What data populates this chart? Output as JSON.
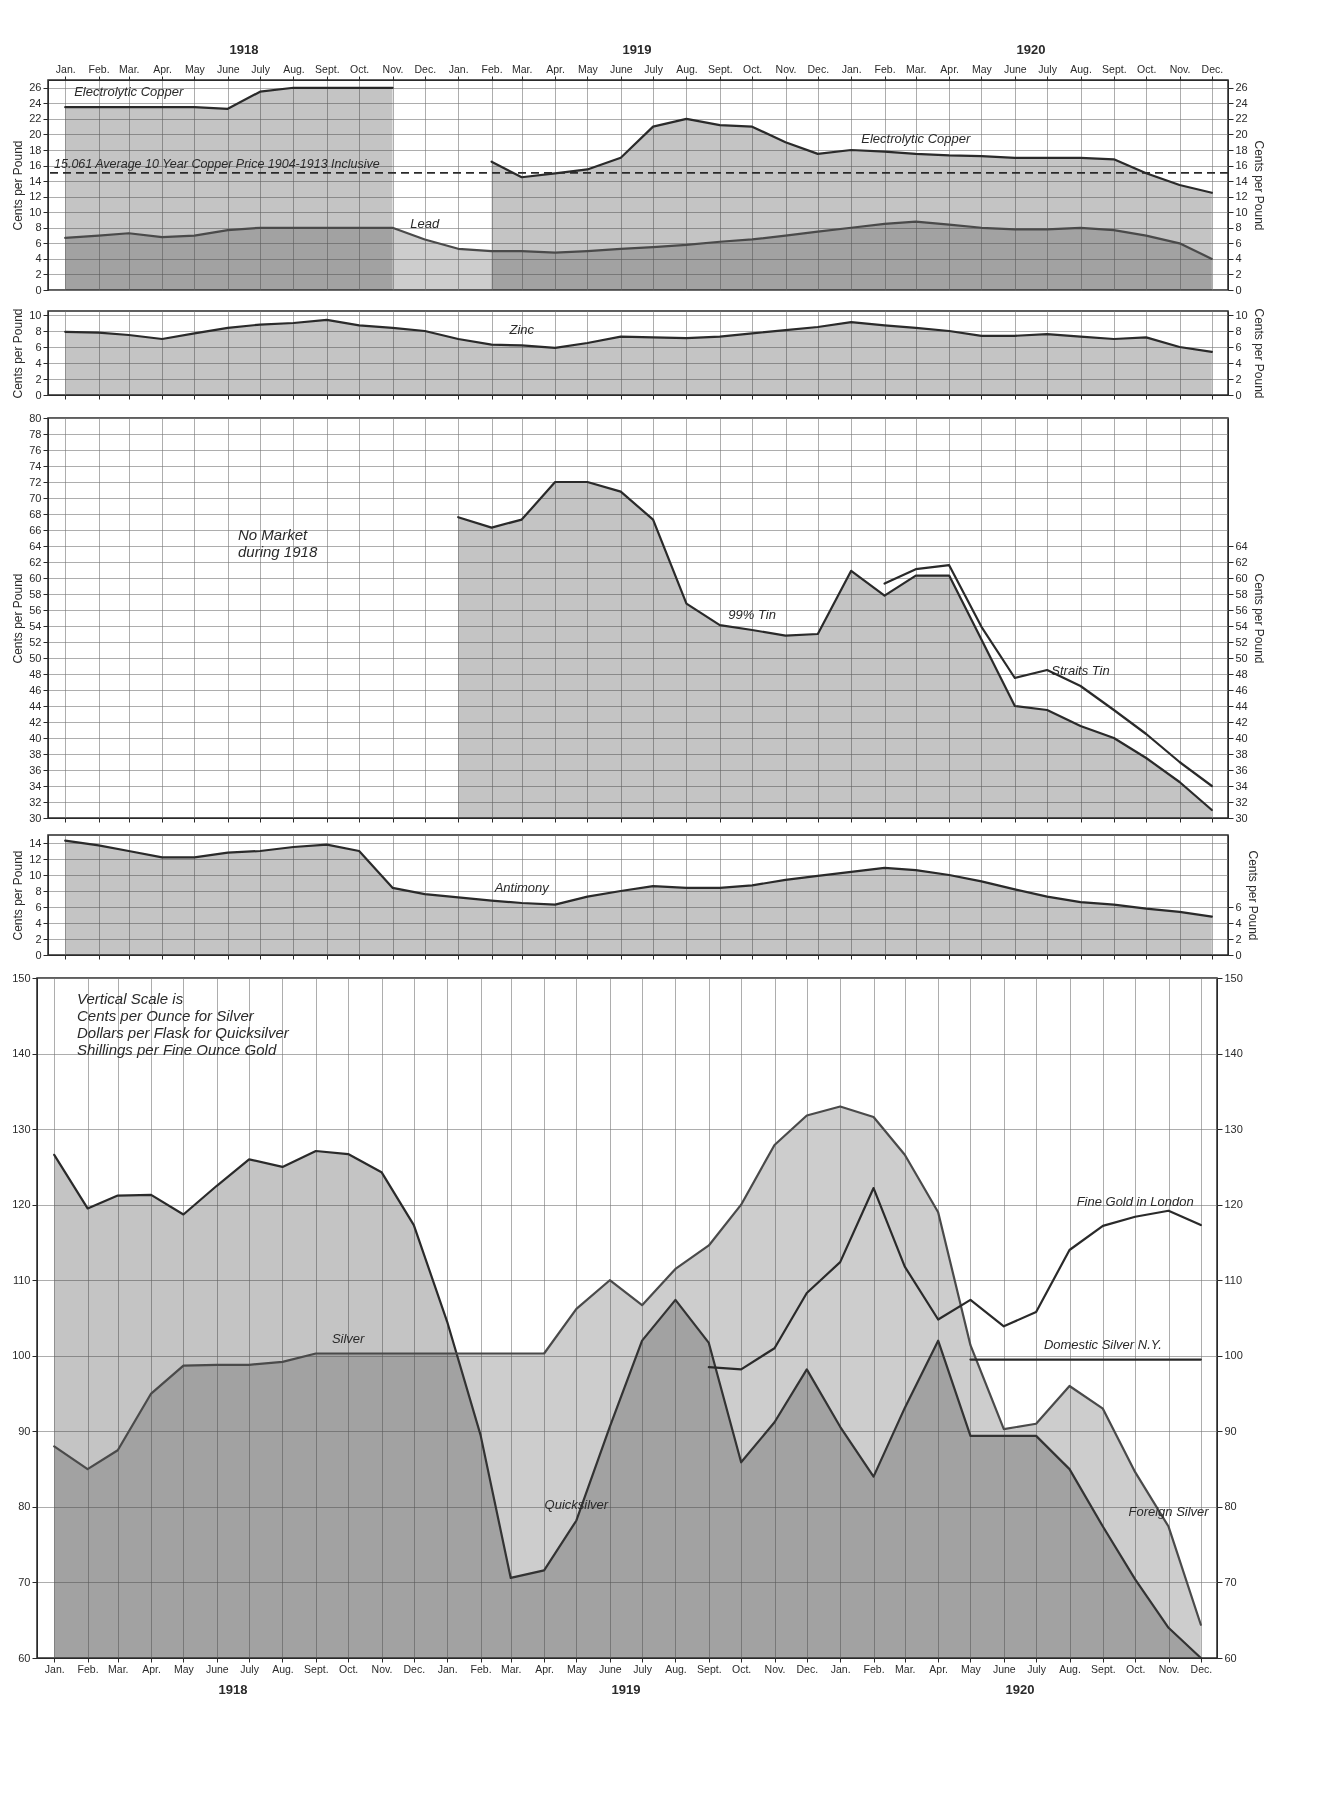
{
  "chart_data": [
    {
      "type": "area",
      "x": [
        "1918-01",
        "1918-02",
        "1918-03",
        "1918-04",
        "1918-05",
        "1918-06",
        "1918-07",
        "1918-08",
        "1918-09",
        "1918-10",
        "1918-11",
        "1918-12",
        "1919-01",
        "1919-02",
        "1919-03",
        "1919-04",
        "1919-05",
        "1919-06",
        "1919-07",
        "1919-08",
        "1919-09",
        "1919-10",
        "1919-11",
        "1919-12",
        "1920-01",
        "1920-02",
        "1920-03",
        "1920-04",
        "1920-05",
        "1920-06",
        "1920-07",
        "1920-08",
        "1920-09",
        "1920-10",
        "1920-11",
        "1920-12"
      ],
      "xlim": [
        "1917-12-16",
        "1920-12-16"
      ],
      "xticks": [
        {
          "value": "1918-01",
          "label": "Jan."
        },
        {
          "value": "1918-02",
          "label": "Feb."
        },
        {
          "value": "1918-03",
          "label": "Mar."
        },
        {
          "value": "1918-04",
          "label": "Apr."
        },
        {
          "value": "1918-05",
          "label": "May"
        },
        {
          "value": "1918-06",
          "label": "June"
        },
        {
          "value": "1918-07",
          "label": "July"
        },
        {
          "value": "1918-08",
          "label": "Aug."
        },
        {
          "value": "1918-09",
          "label": "Sept."
        },
        {
          "value": "1918-10",
          "label": "Oct."
        },
        {
          "value": "1918-11",
          "label": "Nov."
        },
        {
          "value": "1918-12",
          "label": "Dec."
        },
        {
          "value": "1919-01",
          "label": "Jan."
        },
        {
          "value": "1919-02",
          "label": "Feb."
        },
        {
          "value": "1919-03",
          "label": "Mar."
        },
        {
          "value": "1919-04",
          "label": "Apr."
        },
        {
          "value": "1919-05",
          "label": "May"
        },
        {
          "value": "1919-06",
          "label": "June"
        },
        {
          "value": "1919-07",
          "label": "July"
        },
        {
          "value": "1919-08",
          "label": "Aug."
        },
        {
          "value": "1919-09",
          "label": "Sept."
        },
        {
          "value": "1919-10",
          "label": "Oct."
        },
        {
          "value": "1919-11",
          "label": "Nov."
        },
        {
          "value": "1919-12",
          "label": "Dec."
        },
        {
          "value": "1920-01",
          "label": "Jan."
        },
        {
          "value": "1920-02",
          "label": "Feb."
        },
        {
          "value": "1920-03",
          "label": "Mar."
        },
        {
          "value": "1920-04",
          "label": "Apr."
        },
        {
          "value": "1920-05",
          "label": "May"
        },
        {
          "value": "1920-06",
          "label": "June"
        },
        {
          "value": "1920-07",
          "label": "July"
        },
        {
          "value": "1920-08",
          "label": "Aug."
        },
        {
          "value": "1920-09",
          "label": "Sept."
        },
        {
          "value": "1920-10",
          "label": "Oct."
        },
        {
          "value": "1920-11",
          "label": "Nov."
        },
        {
          "value": "1920-12",
          "label": "Dec."
        }
      ],
      "x2lim": [
        "1917-12-16",
        "1920-12-16"
      ],
      "x2ticks": [
        {
          "value": "1918-06-16",
          "label": "1918"
        },
        {
          "value": "1919-06-16",
          "label": "1919"
        },
        {
          "value": "1920-06-16",
          "label": "1920"
        }
      ],
      "ylim": [
        0,
        27
      ],
      "yticks": [
        0,
        2,
        4,
        6,
        8,
        10,
        12,
        14,
        16,
        18,
        20,
        22,
        24,
        26
      ],
      "y2lim": [
        0,
        27
      ],
      "y2ticks": [
        0,
        2,
        4,
        6,
        8,
        10,
        12,
        14,
        16,
        18,
        20,
        22,
        24,
        26
      ],
      "ylabel": "Cents per Pound",
      "y2label": "Cents per Pound",
      "grid": true,
      "series": [
        {
          "color": "#2a2a2a",
          "values": [
            23.5,
            23.5,
            23.5,
            23.5,
            23.5,
            23.3,
            25.5,
            26,
            26,
            26,
            26,
            null,
            null,
            16.5,
            14.5,
            15,
            15.5,
            17,
            21,
            22,
            21.2,
            21,
            19,
            17.5,
            18,
            17.8,
            17.5,
            17.3,
            17.2,
            17,
            17,
            17,
            16.8,
            15,
            13.5,
            12.5
          ]
        },
        {
          "color": "#4a4a4a",
          "values": [
            6.7,
            7,
            7.3,
            6.8,
            7,
            7.7,
            8,
            8,
            8,
            8,
            8,
            6.5,
            5.3,
            5,
            5,
            4.8,
            5,
            5.3,
            5.5,
            5.8,
            6.2,
            6.5,
            7,
            7.5,
            8,
            8.5,
            8.8,
            8.4,
            8,
            7.8,
            7.8,
            8,
            7.7,
            7,
            6,
            4
          ]
        }
      ],
      "ref_lines": [
        {
          "axis": "y",
          "value": 15.061,
          "label": "15.061 Average 10 Year Copper Price 1904-1913 Inclusive",
          "line_style": "dashed",
          "color": "#2a2a2a"
        }
      ],
      "annotations": [
        {
          "text": "Electrolytic Copper",
          "x": "1918-03",
          "y": 23.5
        },
        {
          "text": "Electrolytic Copper",
          "x": "1920-03",
          "y": 17.5
        },
        {
          "text": "Lead",
          "x": "1918-12",
          "y": 6.5
        }
      ]
    },
    {
      "type": "area",
      "x": [
        "1918-01",
        "1918-02",
        "1918-03",
        "1918-04",
        "1918-05",
        "1918-06",
        "1918-07",
        "1918-08",
        "1918-09",
        "1918-10",
        "1918-11",
        "1918-12",
        "1919-01",
        "1919-02",
        "1919-03",
        "1919-04",
        "1919-05",
        "1919-06",
        "1919-07",
        "1919-08",
        "1919-09",
        "1919-10",
        "1919-11",
        "1919-12",
        "1920-01",
        "1920-02",
        "1920-03",
        "1920-04",
        "1920-05",
        "1920-06",
        "1920-07",
        "1920-08",
        "1920-09",
        "1920-10",
        "1920-11",
        "1920-12"
      ],
      "xlim": [
        "1917-12-16",
        "1920-12-16"
      ],
      "xticks": [
        "1918-01",
        "1918-02",
        "1918-03",
        "1918-04",
        "1918-05",
        "1918-06",
        "1918-07",
        "1918-08",
        "1918-09",
        "1918-10",
        "1918-11",
        "1918-12",
        "1919-01",
        "1919-02",
        "1919-03",
        "1919-04",
        "1919-05",
        "1919-06",
        "1919-07",
        "1919-08",
        "1919-09",
        "1919-10",
        "1919-11",
        "1919-12",
        "1920-01",
        "1920-02",
        "1920-03",
        "1920-04",
        "1920-05",
        "1920-06",
        "1920-07",
        "1920-08",
        "1920-09",
        "1920-10",
        "1920-11",
        "1920-12"
      ],
      "ylim": [
        0,
        10.5
      ],
      "yticks": [
        0,
        2,
        4,
        6,
        8,
        10
      ],
      "y2lim": [
        0,
        10.5
      ],
      "y2ticks": [
        0,
        2,
        4,
        6,
        8,
        10
      ],
      "ylabel": "Cents per Pound",
      "y2label": "Cents per Pound",
      "grid": true,
      "tick_labels": "y",
      "series": [
        {
          "color": "#2a2a2a",
          "values": [
            7.9,
            7.8,
            7.5,
            7,
            7.7,
            8.4,
            8.8,
            9,
            9.4,
            8.7,
            8.4,
            8,
            7,
            6.3,
            6.2,
            5.9,
            6.5,
            7.3,
            7.2,
            7.1,
            7.3,
            7.7,
            8.1,
            8.5,
            9.1,
            8.7,
            8.4,
            8,
            7.4,
            7.4,
            7.6,
            7.3,
            7,
            7.2,
            6,
            5.4
          ]
        }
      ],
      "annotations": [
        {
          "text": "Zinc",
          "x": "1919-03",
          "y": 6.2
        }
      ]
    },
    {
      "type": "area",
      "xlim": [
        "1917-12-16",
        "1920-12-16"
      ],
      "xticks": [
        "1918-01",
        "1918-02",
        "1918-03",
        "1918-04",
        "1918-05",
        "1918-06",
        "1918-07",
        "1918-08",
        "1918-09",
        "1918-10",
        "1918-11",
        "1918-12",
        "1919-01",
        "1919-02",
        "1919-03",
        "1919-04",
        "1919-05",
        "1919-06",
        "1919-07",
        "1919-08",
        "1919-09",
        "1919-10",
        "1919-11",
        "1919-12",
        "1920-01",
        "1920-02",
        "1920-03",
        "1920-04",
        "1920-05",
        "1920-06",
        "1920-07",
        "1920-08",
        "1920-09",
        "1920-10",
        "1920-11",
        "1920-12"
      ],
      "ylim": [
        30,
        80
      ],
      "yticks": [
        30,
        32,
        34,
        36,
        38,
        40,
        42,
        44,
        46,
        48,
        50,
        52,
        54,
        56,
        58,
        60,
        62,
        64,
        66,
        68,
        70,
        72,
        74,
        76,
        78,
        80
      ],
      "y2lim": [
        30,
        80
      ],
      "y2ticks": [
        30,
        32,
        34,
        36,
        38,
        40,
        42,
        44,
        46,
        48,
        50,
        52,
        54,
        56,
        58,
        60,
        62,
        64
      ],
      "ylabel": "Cents per Pound",
      "y2label": "Cents per Pound",
      "grid": true,
      "tick_labels": "y",
      "series": [
        {
          "color": "#2a2a2a",
          "x": [
            "1919-01",
            "1919-02",
            "1919-03",
            "1919-04",
            "1919-05",
            "1919-06",
            "1919-07",
            "1919-08",
            "1919-09",
            "1919-10",
            "1919-11",
            "1919-12",
            "1920-01",
            "1920-02",
            "1920-03",
            "1920-04",
            "1920-05",
            "1920-06",
            "1920-07",
            "1920-08",
            "1920-09",
            "1920-10",
            "1920-11",
            "1920-12"
          ],
          "values": [
            67.6,
            66.3,
            67.3,
            72,
            72,
            70.8,
            67.3,
            56.8,
            54.1,
            53.5,
            52.8,
            53,
            60.9,
            57.8,
            60.3,
            60.3,
            52.3,
            44,
            43.5,
            41.5,
            40,
            37.5,
            34.5,
            31
          ]
        },
        {
          "type": "line",
          "color": "#2a2a2a",
          "x": [
            "1920-02",
            "1920-03",
            "1920-04",
            "1920-05",
            "1920-06",
            "1920-07",
            "1920-08",
            "1920-09",
            "1920-10",
            "1920-11",
            "1920-12"
          ],
          "values": [
            59.3,
            61.1,
            61.6,
            53.9,
            47.5,
            48.5,
            46.5,
            43.5,
            40.5,
            37,
            34
          ]
        }
      ],
      "annotations": [
        "No Market\nduring 1918",
        {
          "text": "99% Tin",
          "x": "1919-10",
          "y": 53.5
        },
        {
          "text": "Straits Tin",
          "x": "1920-08",
          "y": 46.5
        }
      ]
    },
    {
      "type": "area",
      "x": [
        "1918-01",
        "1918-02",
        "1918-03",
        "1918-04",
        "1918-05",
        "1918-06",
        "1918-07",
        "1918-08",
        "1918-09",
        "1918-10",
        "1918-11",
        "1918-12",
        "1919-01",
        "1919-02",
        "1919-03",
        "1919-04",
        "1919-05",
        "1919-06",
        "1919-07",
        "1919-08",
        "1919-09",
        "1919-10",
        "1919-11",
        "1919-12",
        "1920-01",
        "1920-02",
        "1920-03",
        "1920-04",
        "1920-05",
        "1920-06",
        "1920-07",
        "1920-08",
        "1920-09",
        "1920-10",
        "1920-11",
        "1920-12"
      ],
      "xlim": [
        "1917-12-16",
        "1920-12-16"
      ],
      "xticks": [
        "1918-01",
        "1918-02",
        "1918-03",
        "1918-04",
        "1918-05",
        "1918-06",
        "1918-07",
        "1918-08",
        "1918-09",
        "1918-10",
        "1918-11",
        "1918-12",
        "1919-01",
        "1919-02",
        "1919-03",
        "1919-04",
        "1919-05",
        "1919-06",
        "1919-07",
        "1919-08",
        "1919-09",
        "1919-10",
        "1919-11",
        "1919-12",
        "1920-01",
        "1920-02",
        "1920-03",
        "1920-04",
        "1920-05",
        "1920-06",
        "1920-07",
        "1920-08",
        "1920-09",
        "1920-10",
        "1920-11",
        "1920-12"
      ],
      "ylim": [
        0,
        15
      ],
      "yticks": [
        0,
        2,
        4,
        6,
        8,
        10,
        12,
        14
      ],
      "y2lim": [
        0,
        15
      ],
      "y2ticks": [
        0,
        2,
        4,
        6
      ],
      "ylabel": "Cents per Pound",
      "y2label": "Cents per Pound",
      "grid": true,
      "tick_labels": "y",
      "series": [
        {
          "color": "#2a2a2a",
          "values": [
            14.3,
            13.7,
            13,
            12.2,
            12.2,
            12.8,
            13,
            13.5,
            13.8,
            13,
            8.4,
            7.6,
            7.2,
            6.8,
            6.5,
            6.3,
            7.3,
            8,
            8.6,
            8.4,
            8.4,
            8.7,
            9.4,
            9.9,
            10.4,
            10.9,
            10.6,
            10,
            9.2,
            8.2,
            7.3,
            6.6,
            6.3,
            5.8,
            5.4,
            4.8
          ]
        }
      ],
      "annotations": [
        {
          "text": "Antimony",
          "x": "1919-03",
          "y": 6.5
        }
      ]
    },
    {
      "type": "area",
      "x": [
        "1918-01",
        "1918-02",
        "1918-03",
        "1918-04",
        "1918-05",
        "1918-06",
        "1918-07",
        "1918-08",
        "1918-09",
        "1918-10",
        "1918-11",
        "1918-12",
        "1919-01",
        "1919-02",
        "1919-03",
        "1919-04",
        "1919-05",
        "1919-06",
        "1919-07",
        "1919-08",
        "1919-09",
        "1919-10",
        "1919-11",
        "1919-12",
        "1920-01",
        "1920-02",
        "1920-03",
        "1920-04",
        "1920-05",
        "1920-06",
        "1920-07",
        "1920-08",
        "1920-09",
        "1920-10",
        "1920-11",
        "1920-12"
      ],
      "xlim": [
        "1917-12-16",
        "1920-12-16"
      ],
      "xticks": [
        {
          "value": "1918-01",
          "label": "Jan."
        },
        {
          "value": "1918-02",
          "label": "Feb."
        },
        {
          "value": "1918-03",
          "label": "Mar."
        },
        {
          "value": "1918-04",
          "label": "Apr."
        },
        {
          "value": "1918-05",
          "label": "May"
        },
        {
          "value": "1918-06",
          "label": "June"
        },
        {
          "value": "1918-07",
          "label": "July"
        },
        {
          "value": "1918-08",
          "label": "Aug."
        },
        {
          "value": "1918-09",
          "label": "Sept."
        },
        {
          "value": "1918-10",
          "label": "Oct."
        },
        {
          "value": "1918-11",
          "label": "Nov."
        },
        {
          "value": "1918-12",
          "label": "Dec."
        },
        {
          "value": "1919-01",
          "label": "Jan."
        },
        {
          "value": "1919-02",
          "label": "Feb."
        },
        {
          "value": "1919-03",
          "label": "Mar."
        },
        {
          "value": "1919-04",
          "label": "Apr."
        },
        {
          "value": "1919-05",
          "label": "May"
        },
        {
          "value": "1919-06",
          "label": "June"
        },
        {
          "value": "1919-07",
          "label": "July"
        },
        {
          "value": "1919-08",
          "label": "Aug."
        },
        {
          "value": "1919-09",
          "label": "Sept."
        },
        {
          "value": "1919-10",
          "label": "Oct."
        },
        {
          "value": "1919-11",
          "label": "Nov."
        },
        {
          "value": "1919-12",
          "label": "Dec."
        },
        {
          "value": "1920-01",
          "label": "Jan."
        },
        {
          "value": "1920-02",
          "label": "Feb."
        },
        {
          "value": "1920-03",
          "label": "Mar."
        },
        {
          "value": "1920-04",
          "label": "Apr."
        },
        {
          "value": "1920-05",
          "label": "May"
        },
        {
          "value": "1920-06",
          "label": "June"
        },
        {
          "value": "1920-07",
          "label": "July"
        },
        {
          "value": "1920-08",
          "label": "Aug."
        },
        {
          "value": "1920-09",
          "label": "Sept."
        },
        {
          "value": "1920-10",
          "label": "Oct."
        },
        {
          "value": "1920-11",
          "label": "Nov."
        },
        {
          "value": "1920-12",
          "label": "Dec."
        }
      ],
      "x2lim": [
        "1917-12-16",
        "1920-12-16"
      ],
      "x2ticks": [
        {
          "value": "1918-06-16",
          "label": "1918"
        },
        {
          "value": "1919-06-16",
          "label": "1919"
        },
        {
          "value": "1920-06-16",
          "label": "1920"
        }
      ],
      "ylim": [
        60,
        150
      ],
      "yticks": [
        60,
        70,
        80,
        90,
        100,
        110,
        120,
        130,
        140,
        150
      ],
      "y2lim": [
        60,
        150
      ],
      "y2ticks": [
        60,
        70,
        80,
        90,
        100,
        110,
        120,
        130,
        140,
        150
      ],
      "grid": true,
      "series": [
        {
          "color": "#2a2a2a",
          "values": [
            126.6,
            119.5,
            121.2,
            121.3,
            118.7,
            122.5,
            126,
            125,
            127.1,
            126.7,
            124.3,
            117.3,
            104.5,
            89.5,
            70.6,
            71.6,
            78.2,
            90.6,
            102,
            107.4,
            101.7,
            85.9,
            91.2,
            98.2,
            90.6,
            84,
            93.1,
            102,
            89.4,
            89.4,
            89.4,
            85,
            77.4,
            70.4,
            64,
            60
          ]
        },
        {
          "color": "#4a4a4a",
          "values": [
            88,
            85,
            87.5,
            95,
            98.7,
            98.8,
            98.8,
            99.2,
            100.3,
            100.3,
            100.3,
            100.3,
            100.3,
            100.3,
            100.3,
            100.3,
            106.2,
            110,
            106.7,
            111.5,
            114.6,
            120,
            127.9,
            131.8,
            133,
            131.6,
            126.6,
            119,
            101.4,
            90.3,
            91,
            96,
            93,
            84.6,
            77.4,
            64.4
          ]
        },
        {
          "type": "line",
          "color": "#2a2a2a",
          "values": [
            null,
            null,
            null,
            null,
            null,
            null,
            null,
            null,
            null,
            null,
            null,
            null,
            null,
            null,
            null,
            null,
            null,
            null,
            null,
            null,
            98.5,
            98.2,
            101,
            108.3,
            112.4,
            122.2,
            111.8,
            104.8,
            107.4,
            103.9,
            105.8,
            114,
            117.2,
            118.4,
            119.2,
            117.3
          ]
        },
        {
          "type": "line",
          "color": "#2a2a2a",
          "values": [
            null,
            null,
            null,
            null,
            null,
            null,
            null,
            null,
            null,
            null,
            null,
            null,
            null,
            null,
            null,
            null,
            null,
            null,
            null,
            null,
            null,
            null,
            null,
            null,
            null,
            null,
            null,
            null,
            99.5,
            99.5,
            99.5,
            99.5,
            99.5,
            99.5,
            99.5,
            99.5
          ]
        }
      ],
      "annotations": [
        "Vertical Scale is\nCents per Ounce for Silver\nDollars per Flask for Quicksilver\nShillings per Fine Ounce Gold",
        {
          "text": "Silver",
          "x": "1918-10",
          "y": 100.3
        },
        {
          "text": "Quicksilver",
          "x": "1919-05",
          "y": 78.2
        },
        {
          "text": "Fine Gold in London",
          "x": "1920-10",
          "y": 118.4
        },
        {
          "text": "Domestic Silver N.Y.",
          "x": "1920-09",
          "y": 99.5
        },
        {
          "text": "Foreign Silver",
          "x": "1920-11",
          "y": 77.4
        }
      ]
    }
  ]
}
